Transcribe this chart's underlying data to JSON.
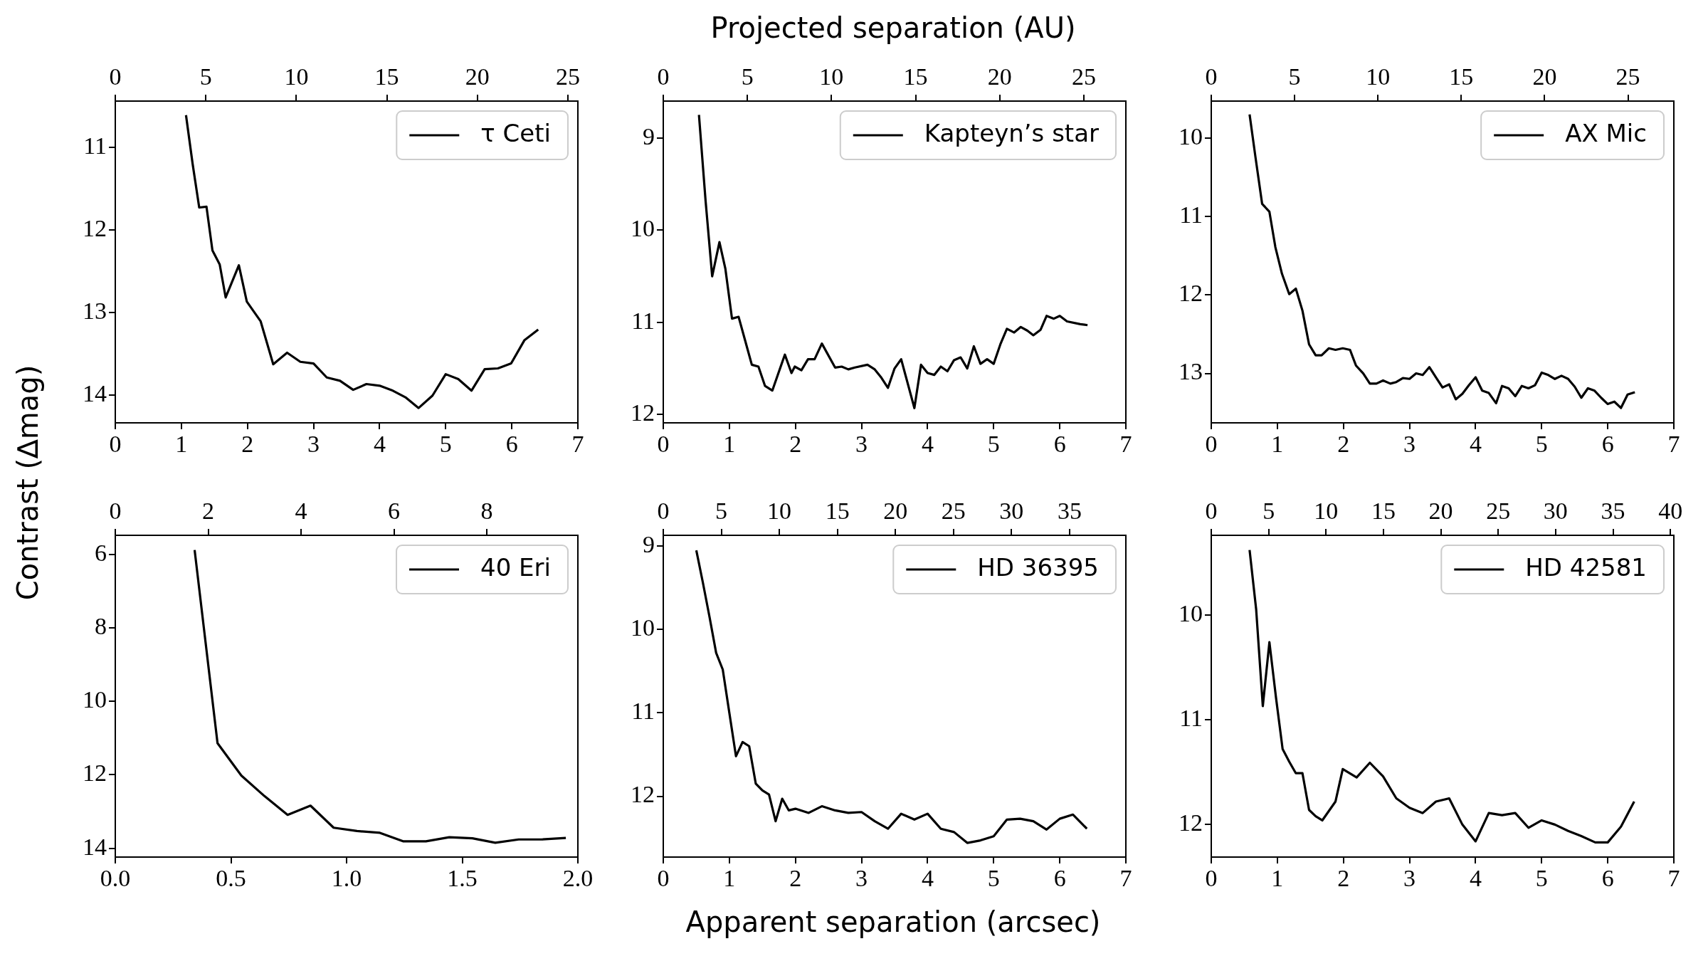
{
  "chart_data": [
    {
      "type": "line",
      "ylabel": "Contrast (∆mag)",
      "legend": "top right",
      "line_style": "solid",
      "xlim": [
        0,
        7
      ],
      "xticks": [
        0,
        1,
        2,
        3,
        4,
        5,
        6,
        7
      ],
      "ylim": [
        14.34,
        10.44
      ],
      "yticks": [
        11,
        12,
        13,
        14
      ],
      "x2lim": [
        0,
        25.55
      ],
      "x2ticks": [
        0,
        5,
        10,
        15,
        20,
        25
      ],
      "x": [
        1.07,
        1.17,
        1.27,
        1.38,
        1.47,
        1.58,
        1.67,
        1.87,
        1.99,
        2.2,
        2.39,
        2.6,
        2.8,
        3.0,
        3.2,
        3.4,
        3.6,
        3.8,
        4.0,
        4.2,
        4.39,
        4.59,
        4.8,
        5.0,
        5.19,
        5.39,
        5.59,
        5.79,
        5.99,
        6.19,
        6.4
      ],
      "series": [
        {
          "name": "τ Ceti",
          "color": "#000000",
          "values": [
            10.61,
            11.2,
            11.73,
            11.72,
            12.25,
            12.42,
            12.82,
            12.43,
            12.87,
            13.11,
            13.63,
            13.49,
            13.6,
            13.62,
            13.79,
            13.83,
            13.94,
            13.87,
            13.89,
            13.95,
            14.03,
            14.16,
            14.01,
            13.75,
            13.81,
            13.95,
            13.69,
            13.68,
            13.62,
            13.34,
            13.21
          ]
        }
      ]
    },
    {
      "type": "line",
      "x2label": "Projected separation (AU)",
      "legend": "top right",
      "line_style": "solid",
      "xlim": [
        0,
        7
      ],
      "xticks": [
        0,
        1,
        2,
        3,
        4,
        5,
        6,
        7
      ],
      "ylim": [
        12.09,
        8.6
      ],
      "yticks": [
        9,
        10,
        11,
        12
      ],
      "x2lim": [
        0,
        27.5
      ],
      "x2ticks": [
        0,
        5,
        10,
        15,
        20,
        25
      ],
      "x": [
        0.54,
        0.64,
        0.74,
        0.85,
        0.94,
        1.04,
        1.14,
        1.24,
        1.34,
        1.44,
        1.54,
        1.65,
        1.84,
        1.94,
        1.99,
        2.09,
        2.19,
        2.29,
        2.4,
        2.6,
        2.7,
        2.8,
        2.9,
        3.09,
        3.2,
        3.3,
        3.4,
        3.5,
        3.6,
        3.8,
        3.9,
        4.0,
        4.1,
        4.2,
        4.3,
        4.4,
        4.5,
        4.6,
        4.7,
        4.8,
        4.9,
        5.0,
        5.1,
        5.2,
        5.31,
        5.41,
        5.51,
        5.6,
        5.71,
        5.8,
        5.91,
        6.0,
        6.11,
        6.31,
        6.42
      ],
      "series": [
        {
          "name": "Kapteyn’s star",
          "color": "#000000",
          "values": [
            8.75,
            9.68,
            10.5,
            10.13,
            10.42,
            10.96,
            10.94,
            11.2,
            11.46,
            11.48,
            11.69,
            11.74,
            11.35,
            11.55,
            11.48,
            11.52,
            11.4,
            11.4,
            11.23,
            11.49,
            11.48,
            11.51,
            11.49,
            11.46,
            11.51,
            11.6,
            11.71,
            11.5,
            11.4,
            11.93,
            11.46,
            11.55,
            11.57,
            11.48,
            11.53,
            11.41,
            11.38,
            11.5,
            11.26,
            11.45,
            11.4,
            11.45,
            11.24,
            11.07,
            11.11,
            11.05,
            11.09,
            11.14,
            11.08,
            10.93,
            10.96,
            10.93,
            10.99,
            11.02,
            11.03
          ]
        }
      ]
    },
    {
      "type": "line",
      "legend": "top right",
      "line_style": "solid",
      "xlim": [
        0,
        7
      ],
      "xticks": [
        0,
        1,
        2,
        3,
        4,
        5,
        6,
        7
      ],
      "ylim": [
        13.63,
        9.53
      ],
      "yticks": [
        10,
        11,
        12,
        13
      ],
      "x2lim": [
        0,
        27.75
      ],
      "x2ticks": [
        0,
        5,
        10,
        15,
        20,
        25
      ],
      "x": [
        0.58,
        0.67,
        0.77,
        0.88,
        0.97,
        1.07,
        1.18,
        1.28,
        1.38,
        1.48,
        1.58,
        1.67,
        1.78,
        1.88,
        1.99,
        2.1,
        2.19,
        2.3,
        2.4,
        2.5,
        2.6,
        2.71,
        2.8,
        2.9,
        3.0,
        3.1,
        3.2,
        3.3,
        3.4,
        3.5,
        3.6,
        3.7,
        3.8,
        3.9,
        4.0,
        4.1,
        4.2,
        4.31,
        4.4,
        4.5,
        4.6,
        4.7,
        4.8,
        4.9,
        5.0,
        5.1,
        5.2,
        5.3,
        5.4,
        5.5,
        5.6,
        5.7,
        5.8,
        5.9,
        6.0,
        6.1,
        6.2,
        6.3,
        6.41
      ],
      "series": [
        {
          "name": "AX Mic",
          "color": "#000000",
          "values": [
            9.7,
            10.25,
            10.84,
            10.94,
            11.39,
            11.73,
            11.99,
            11.92,
            12.2,
            12.63,
            12.77,
            12.77,
            12.68,
            12.7,
            12.68,
            12.7,
            12.9,
            13.0,
            13.13,
            13.13,
            13.09,
            13.13,
            13.11,
            13.06,
            13.07,
            13.0,
            13.02,
            12.92,
            13.05,
            13.18,
            13.14,
            13.33,
            13.26,
            13.15,
            13.05,
            13.22,
            13.25,
            13.38,
            13.16,
            13.19,
            13.29,
            13.16,
            13.19,
            13.15,
            12.99,
            13.02,
            13.07,
            13.03,
            13.07,
            13.17,
            13.31,
            13.19,
            13.22,
            13.31,
            13.39,
            13.36,
            13.44,
            13.27,
            13.24
          ]
        }
      ]
    },
    {
      "type": "line",
      "legend": "top right",
      "line_style": "solid",
      "xlim": [
        0,
        2
      ],
      "xticks": [
        {
          "value": 0,
          "label": "0.0"
        },
        {
          "value": 0.5,
          "label": "0.5"
        },
        {
          "value": 1,
          "label": "1.0"
        },
        {
          "value": 1.5,
          "label": "1.5"
        },
        {
          "value": 2,
          "label": "2.0"
        }
      ],
      "ylim": [
        14.24,
        5.48
      ],
      "yticks": [
        6,
        8,
        10,
        12,
        14
      ],
      "x2lim": [
        0,
        9.96
      ],
      "x2ticks": [
        0,
        2,
        4,
        6,
        8
      ],
      "x": [
        0.343,
        0.442,
        0.545,
        0.645,
        0.745,
        0.844,
        0.944,
        1.045,
        1.144,
        1.244,
        1.343,
        1.444,
        1.544,
        1.643,
        1.744,
        1.843,
        1.948
      ],
      "series": [
        {
          "name": "40 Eri",
          "color": "#000000",
          "values": [
            5.88,
            11.14,
            12.02,
            12.58,
            13.09,
            12.84,
            13.44,
            13.53,
            13.58,
            13.81,
            13.81,
            13.7,
            13.73,
            13.85,
            13.76,
            13.76,
            13.72
          ]
        }
      ]
    },
    {
      "type": "line",
      "xlabel": "Apparent separation (arcsec)",
      "legend": "top right",
      "line_style": "solid",
      "xlim": [
        0,
        7
      ],
      "xticks": [
        0,
        1,
        2,
        3,
        4,
        5,
        6,
        7
      ],
      "ylim": [
        12.73,
        8.87
      ],
      "yticks": [
        9,
        10,
        11,
        12
      ],
      "x2lim": [
        0,
        39.85
      ],
      "x2ticks": [
        0,
        5,
        10,
        15,
        20,
        25,
        30,
        35
      ],
      "x": [
        0.5,
        0.6,
        0.7,
        0.8,
        0.9,
        1.0,
        1.1,
        1.2,
        1.3,
        1.4,
        1.5,
        1.6,
        1.7,
        1.8,
        1.9,
        2.0,
        2.2,
        2.4,
        2.6,
        2.8,
        3.0,
        3.2,
        3.4,
        3.6,
        3.8,
        4.0,
        4.2,
        4.4,
        4.6,
        4.8,
        5.0,
        5.2,
        5.4,
        5.6,
        5.8,
        6.0,
        6.2,
        6.41
      ],
      "series": [
        {
          "name": "HD 36395",
          "color": "#000000",
          "values": [
            9.05,
            9.44,
            9.85,
            10.28,
            10.48,
            11.0,
            11.52,
            11.35,
            11.4,
            11.85,
            11.93,
            11.98,
            12.3,
            12.03,
            12.17,
            12.15,
            12.2,
            12.12,
            12.17,
            12.2,
            12.19,
            12.3,
            12.39,
            12.21,
            12.28,
            12.21,
            12.39,
            12.43,
            12.56,
            12.53,
            12.48,
            12.28,
            12.27,
            12.3,
            12.4,
            12.27,
            12.22,
            12.39
          ]
        }
      ]
    },
    {
      "type": "line",
      "legend": "top right",
      "line_style": "solid",
      "xlim": [
        0,
        7
      ],
      "xticks": [
        0,
        1,
        2,
        3,
        4,
        5,
        6,
        7
      ],
      "ylim": [
        12.31,
        9.24
      ],
      "yticks": [
        10,
        11,
        12
      ],
      "x2lim": [
        0,
        40.3
      ],
      "x2ticks": [
        0,
        5,
        10,
        15,
        20,
        25,
        30,
        35,
        40
      ],
      "x": [
        0.58,
        0.68,
        0.78,
        0.88,
        0.98,
        1.08,
        1.18,
        1.28,
        1.38,
        1.48,
        1.58,
        1.68,
        1.88,
        1.99,
        2.2,
        2.4,
        2.6,
        2.8,
        3.0,
        3.2,
        3.4,
        3.6,
        3.8,
        4.0,
        4.2,
        4.4,
        4.6,
        4.8,
        5.0,
        5.2,
        5.4,
        5.6,
        5.81,
        6.0,
        6.2,
        6.4
      ],
      "series": [
        {
          "name": "HD 42581",
          "color": "#000000",
          "values": [
            9.38,
            9.95,
            10.87,
            10.26,
            10.79,
            11.28,
            11.4,
            11.51,
            11.51,
            11.86,
            11.92,
            11.96,
            11.78,
            11.47,
            11.55,
            11.41,
            11.54,
            11.75,
            11.84,
            11.89,
            11.78,
            11.75,
            12.0,
            12.16,
            11.89,
            11.91,
            11.89,
            12.03,
            11.96,
            12.0,
            12.06,
            12.11,
            12.17,
            12.17,
            12.02,
            11.78
          ]
        }
      ]
    }
  ]
}
